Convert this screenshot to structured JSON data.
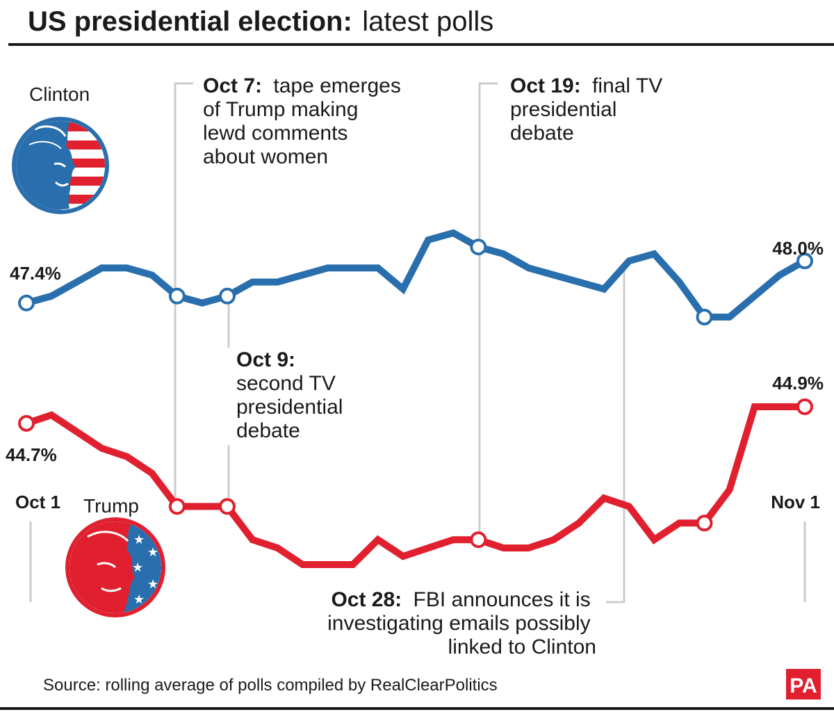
{
  "title": {
    "bold": "US presidential election:",
    "light": "latest polls"
  },
  "source": "Source: rolling average of polls compiled by RealClearPolitics",
  "logo_text": "PA",
  "candidates": {
    "clinton": "Clinton",
    "trump": "Trump"
  },
  "colors": {
    "clinton": "#2a6fad",
    "trump": "#e0202f",
    "marker_fill": "#ffffff",
    "guide": "#cccccc",
    "text": "#1a1a1a",
    "logo_bg": "#e0202f"
  },
  "chart_data": {
    "type": "line",
    "x": [
      "Oct 1",
      "Oct 2",
      "Oct 3",
      "Oct 4",
      "Oct 5",
      "Oct 6",
      "Oct 7",
      "Oct 8",
      "Oct 9",
      "Oct 10",
      "Oct 11",
      "Oct 12",
      "Oct 13",
      "Oct 14",
      "Oct 15",
      "Oct 16",
      "Oct 17",
      "Oct 18",
      "Oct 19",
      "Oct 20",
      "Oct 21",
      "Oct 22",
      "Oct 23",
      "Oct 24",
      "Oct 25",
      "Oct 26",
      "Oct 27",
      "Oct 28",
      "Oct 29",
      "Oct 30",
      "Oct 31",
      "Nov 1"
    ],
    "x_tick_labels": [
      "Oct 1",
      "Nov 1"
    ],
    "series": [
      {
        "name": "Clinton",
        "values": [
          47.4,
          47.5,
          47.7,
          47.9,
          47.9,
          47.8,
          47.5,
          47.4,
          47.5,
          47.7,
          47.7,
          47.8,
          47.9,
          47.9,
          47.9,
          47.6,
          48.3,
          48.4,
          48.2,
          48.1,
          47.9,
          47.8,
          47.7,
          47.6,
          48.0,
          48.1,
          47.7,
          47.2,
          47.2,
          47.5,
          47.8,
          48.0
        ],
        "end_labels": [
          "47.4%",
          "48.0%"
        ],
        "markers_at": [
          "Oct 1",
          "Oct 7",
          "Oct 9",
          "Oct 19",
          "Oct 28",
          "Nov 1"
        ]
      },
      {
        "name": "Trump",
        "values": [
          44.7,
          44.8,
          44.6,
          44.4,
          44.3,
          44.1,
          43.7,
          43.7,
          43.7,
          43.3,
          43.2,
          43.0,
          43.0,
          43.0,
          43.3,
          43.1,
          43.2,
          43.3,
          43.3,
          43.2,
          43.2,
          43.3,
          43.5,
          43.8,
          43.7,
          43.3,
          43.5,
          43.5,
          43.9,
          44.9,
          44.9,
          44.9
        ],
        "end_labels": [
          "44.7%",
          "44.9%"
        ],
        "markers_at": [
          "Oct 1",
          "Oct 7",
          "Oct 9",
          "Oct 19",
          "Oct 28",
          "Nov 1"
        ]
      }
    ],
    "annotations": [
      {
        "date": "Oct 7",
        "bold": "Oct 7:",
        "lines": [
          "tape emerges",
          "of Trump making",
          "lewd comments",
          "about women"
        ]
      },
      {
        "date": "Oct 9",
        "bold": "Oct 9:",
        "lines": [
          "second TV",
          "presidential",
          "debate"
        ]
      },
      {
        "date": "Oct 19",
        "bold": "Oct 19:",
        "lines": [
          "final TV",
          "presidential",
          "debate"
        ]
      },
      {
        "date": "Oct 28",
        "bold": "Oct 28:",
        "lines": [
          "FBI announces it is",
          "investigating emails possibly",
          "linked to Clinton"
        ]
      }
    ],
    "grid": false,
    "legend": "none"
  }
}
